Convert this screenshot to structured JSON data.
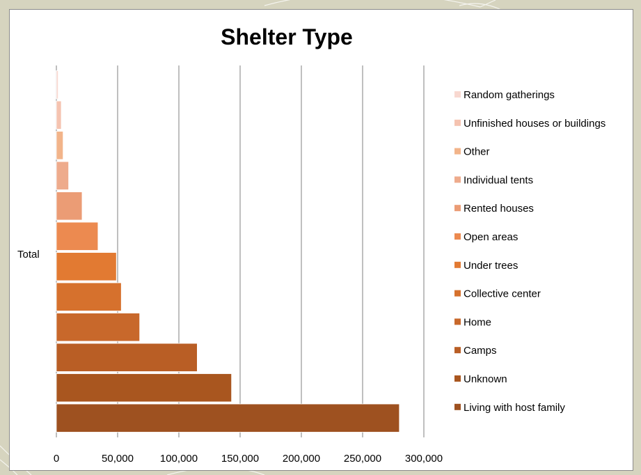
{
  "chart_data": {
    "type": "bar",
    "orientation": "horizontal",
    "title": "Shelter Type",
    "categories": [
      "Total"
    ],
    "xlim": [
      0,
      300000
    ],
    "xticks": [
      0,
      50000,
      100000,
      150000,
      200000,
      250000,
      300000
    ],
    "xtick_labels": [
      "0",
      "50,000",
      "100,000",
      "150,000",
      "200,000",
      "250,000",
      "300,000"
    ],
    "grid": true,
    "legend_position": "right",
    "series": [
      {
        "name": "Living with host family",
        "value": 280000,
        "color": "#9e5120"
      },
      {
        "name": "Unknown",
        "value": 143000,
        "color": "#a9561f"
      },
      {
        "name": "Camps",
        "value": 115000,
        "color": "#b95e25"
      },
      {
        "name": "Home",
        "value": 68000,
        "color": "#c8682b"
      },
      {
        "name": "Collective center",
        "value": 53000,
        "color": "#d6712d"
      },
      {
        "name": "Under trees",
        "value": 49000,
        "color": "#e27a32"
      },
      {
        "name": "Open areas",
        "value": 34000,
        "color": "#ec8a50"
      },
      {
        "name": "Rented houses",
        "value": 21000,
        "color": "#eb9c75"
      },
      {
        "name": "Individual tents",
        "value": 10000,
        "color": "#eeab8c"
      },
      {
        "name": "Other",
        "value": 5500,
        "color": "#f2b48a"
      },
      {
        "name": "Unfinished houses or buildings",
        "value": 4000,
        "color": "#f5c3b0"
      },
      {
        "name": "Random gatherings",
        "value": 1500,
        "color": "#f8d8d0"
      }
    ]
  }
}
